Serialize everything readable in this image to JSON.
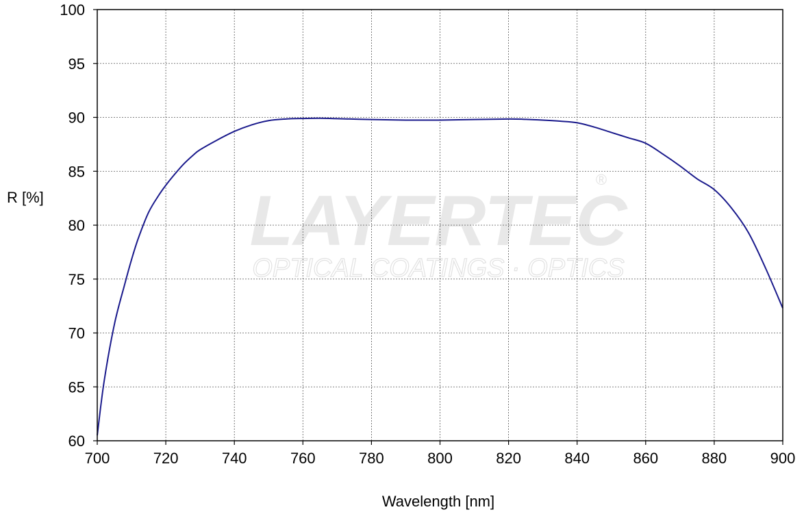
{
  "chart_data": {
    "type": "line",
    "title": "",
    "xlabel": "Wavelength [nm]",
    "ylabel": "R [%]",
    "xlim": [
      700,
      900
    ],
    "ylim": [
      60,
      100
    ],
    "x_ticks": [
      700,
      720,
      740,
      760,
      780,
      800,
      820,
      840,
      860,
      880,
      900
    ],
    "y_ticks": [
      60,
      65,
      70,
      75,
      80,
      85,
      90,
      95,
      100
    ],
    "grid": true,
    "legend": "none",
    "series": [
      {
        "color": "#1a1a8c",
        "x": [
          700,
          702,
          705,
          708,
          710,
          712,
          715,
          718,
          720,
          722,
          725,
          728,
          730,
          735,
          740,
          745,
          750,
          755,
          760,
          765,
          770,
          780,
          790,
          800,
          810,
          820,
          825,
          830,
          835,
          840,
          845,
          850,
          855,
          860,
          865,
          870,
          875,
          880,
          885,
          890,
          895,
          900
        ],
        "y": [
          60.5,
          65.5,
          70.8,
          74.5,
          76.8,
          78.8,
          81.2,
          82.8,
          83.7,
          84.5,
          85.6,
          86.5,
          87.0,
          87.9,
          88.7,
          89.3,
          89.7,
          89.85,
          89.9,
          89.92,
          89.88,
          89.8,
          89.75,
          89.75,
          89.8,
          89.85,
          89.82,
          89.75,
          89.65,
          89.5,
          89.1,
          88.6,
          88.1,
          87.6,
          86.6,
          85.5,
          84.3,
          83.3,
          81.6,
          79.3,
          76.0,
          72.3
        ]
      }
    ]
  },
  "watermark": {
    "brand": "LAYERTEC",
    "tagline": "OPTICAL COATINGS · OPTICS",
    "registered_mark": "®"
  }
}
